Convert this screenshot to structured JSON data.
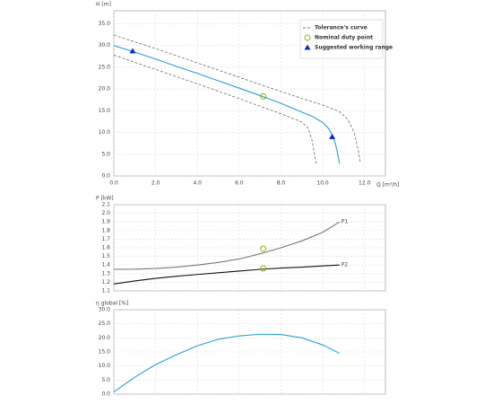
{
  "chart_data": [
    {
      "type": "line",
      "y_label": "H [m]",
      "x_label": "Q [m³/h]",
      "xlim": [
        0,
        13
      ],
      "ylim": [
        0,
        38
      ],
      "xticks": [
        {
          "value": 0,
          "label": "0.0"
        },
        {
          "value": 2,
          "label": "2.0"
        },
        {
          "value": 4,
          "label": "4.0"
        },
        {
          "value": 6,
          "label": "6.0"
        },
        {
          "value": 8,
          "label": "8.0"
        },
        {
          "value": 10,
          "label": "10.0"
        },
        {
          "value": 12,
          "label": "12.0"
        }
      ],
      "yticks": [
        {
          "value": 0,
          "label": "0.0"
        },
        {
          "value": 5,
          "label": "5.0"
        },
        {
          "value": 10,
          "label": "10.0"
        },
        {
          "value": 15,
          "label": "15.0"
        },
        {
          "value": 20,
          "label": "20.0"
        },
        {
          "value": 25,
          "label": "25.0"
        },
        {
          "value": 30,
          "label": "30.0"
        },
        {
          "value": 35,
          "label": "35.0"
        }
      ],
      "grid": true,
      "xtick_labels": true,
      "legend": "upper right",
      "series": [
        {
          "color": "#2a9fd0",
          "x": [
            0,
            1,
            2,
            3,
            4,
            5,
            6,
            7,
            8,
            9,
            9.5,
            10,
            10.3,
            10.5,
            10.6,
            10.7,
            10.8
          ],
          "values": [
            30.0,
            28.5,
            26.9,
            25.2,
            23.6,
            21.9,
            20.2,
            18.5,
            16.7,
            14.7,
            13.7,
            12.3,
            10.8,
            9.0,
            7.5,
            5.5,
            2.8
          ]
        },
        {
          "name": "Tolerance's curve",
          "color": "#555555",
          "dashed": true,
          "x": [
            0,
            2,
            4,
            6,
            8,
            10,
            10.8,
            11.2,
            11.5,
            11.7,
            11.8
          ],
          "values": [
            32.4,
            29.3,
            26,
            22.7,
            19.4,
            16.3,
            14.8,
            13,
            10,
            6,
            3
          ]
        },
        {
          "color": "#555555",
          "dashed": true,
          "x": [
            0,
            2,
            4,
            6,
            8,
            9,
            9.3,
            9.5,
            9.6,
            9.7
          ],
          "values": [
            27.8,
            24.5,
            21.2,
            17.8,
            14.3,
            12.4,
            11,
            8,
            5,
            2.7
          ]
        }
      ],
      "points": [
        {
          "name": "Nominal duty point",
          "marker": "circle",
          "color": "#8cb400",
          "x": [
            7.15
          ],
          "values": [
            18.3
          ]
        },
        {
          "name": "Suggested working range",
          "marker": "triangle",
          "color": "#0b2bbf",
          "x": [
            0.9,
            10.45
          ],
          "values": [
            28.7,
            9.0
          ]
        }
      ]
    },
    {
      "type": "line",
      "y_label": "P [kW]",
      "xlim": [
        0,
        13
      ],
      "ylim": [
        1.1,
        2.1
      ],
      "xticks": [
        0,
        2,
        4,
        6,
        8,
        10,
        12
      ],
      "yticks": [
        1.1,
        1.2,
        1.3,
        1.4,
        1.5,
        1.6,
        1.7,
        1.8,
        1.9,
        {
          "value": 2,
          "label": "2.0"
        },
        2.1
      ],
      "grid": true,
      "xtick_labels": false,
      "end_labels": true,
      "x": [
        0,
        1,
        2,
        3,
        4,
        5,
        6,
        7,
        8,
        9,
        10,
        10.8
      ],
      "series": [
        {
          "name": "P1",
          "color": "#777777",
          "values": [
            1.35,
            1.352,
            1.36,
            1.375,
            1.4,
            1.43,
            1.47,
            1.53,
            1.6,
            1.68,
            1.78,
            1.9
          ]
        },
        {
          "name": "P2",
          "color": "#111111",
          "values": [
            1.18,
            1.215,
            1.245,
            1.27,
            1.29,
            1.31,
            1.33,
            1.35,
            1.365,
            1.375,
            1.39,
            1.4
          ]
        }
      ],
      "points": [
        {
          "marker": "circle",
          "color": "#8cb400",
          "x": [
            7.15,
            7.15
          ],
          "values": [
            1.59,
            1.36
          ]
        }
      ]
    },
    {
      "type": "line",
      "y_label": "η global [%]",
      "xlim": [
        0,
        13
      ],
      "ylim": [
        0,
        30
      ],
      "xticks": [
        0,
        2,
        4,
        6,
        8,
        10,
        12
      ],
      "yticks": [
        {
          "value": 0,
          "label": "0.0"
        },
        {
          "value": 5,
          "label": "5.0"
        },
        {
          "value": 10,
          "label": "10.0"
        },
        {
          "value": 15,
          "label": "15.0"
        },
        {
          "value": 20,
          "label": "20.0"
        },
        {
          "value": 25,
          "label": "25.0"
        },
        {
          "value": 30,
          "label": "30.0"
        }
      ],
      "grid": true,
      "xtick_labels": false,
      "x": [
        0,
        1,
        2,
        3,
        4,
        5,
        6,
        7,
        8,
        9,
        10,
        10.8
      ],
      "series": [
        {
          "color": "#2a9fd0",
          "values": [
            0.8,
            6,
            10.5,
            14,
            17.2,
            19.5,
            20.7,
            21.3,
            21.2,
            20,
            17.5,
            14.5
          ]
        }
      ]
    }
  ]
}
